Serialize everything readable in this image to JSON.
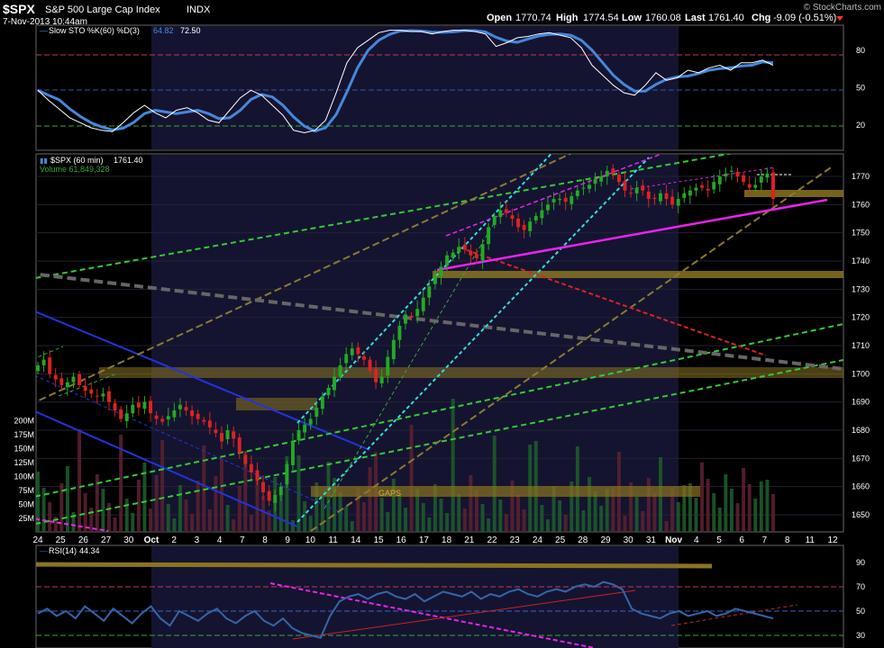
{
  "header": {
    "symbol": "$SPX",
    "name": "S&P 500 Large Cap Index",
    "exchange": "INDX",
    "datetime": "7-Nov-2013 10:44am",
    "open_label": "Open",
    "open": "1770.74",
    "high_label": "High",
    "high": "1774.54",
    "low_label": "Low",
    "low": "1760.08",
    "last_label": "Last",
    "last": "1761.40",
    "chg_label": "Chg",
    "chg": "-9.09 (-0.51%)",
    "watermark": "© StockCharts.com"
  },
  "colors": {
    "background": "#000000",
    "weekend_band": "#151530",
    "candle_up": "#22aa22",
    "candle_down": "#dd2222",
    "stoch_k": "#ffffff",
    "stoch_d": "#4488dd",
    "rsi": "#3366aa",
    "gold": "#8a7420",
    "neg_arrow": "#ff3333"
  },
  "chart_data": [
    {
      "type": "line",
      "panel": "stochastic",
      "legend": "Slow STO %K(60) %D(3)",
      "legend_values": [
        "64.82",
        "72.50"
      ],
      "ylim": [
        0,
        100
      ],
      "yticks": [
        20,
        50,
        80
      ],
      "reference_lines": [
        20,
        50,
        80
      ],
      "series": [
        {
          "values": [
            48,
            40,
            33,
            26,
            22,
            18,
            16,
            15,
            22,
            30,
            36,
            30,
            26,
            32,
            34,
            30,
            24,
            22,
            32,
            42,
            48,
            44,
            36,
            28,
            16,
            14,
            16,
            24,
            46,
            70,
            82,
            88,
            94,
            96,
            96,
            95,
            95,
            93,
            95,
            96,
            96,
            95,
            93,
            83,
            86,
            90,
            91,
            93,
            94,
            92,
            90,
            82,
            68,
            60,
            52,
            46,
            44,
            52,
            62,
            56,
            58,
            64,
            62,
            66,
            68,
            64,
            70,
            70,
            72,
            68
          ]
        }
      ]
    },
    {
      "type": "candlestick",
      "panel": "price",
      "legend": "$SPX (60 min)",
      "legend_value": "1761.40",
      "volume_legend": "Volume 61,849,328",
      "ylim": [
        1645,
        1775
      ],
      "yticks": [
        1650,
        1660,
        1670,
        1680,
        1690,
        1700,
        1710,
        1720,
        1730,
        1740,
        1750,
        1760,
        1770
      ],
      "volume_ticks": [
        "25M",
        "50M",
        "75M",
        "100M",
        "125M",
        "150M",
        "175M",
        "200M"
      ],
      "annotations": [
        "GAPS"
      ],
      "x_tick_labels": [
        "24",
        "25",
        "26",
        "27",
        "30",
        "Oct",
        "2",
        "3",
        "4",
        "7",
        "8",
        "9",
        "10",
        "11",
        "14",
        "15",
        "16",
        "17",
        "18",
        "21",
        "22",
        "23",
        "24",
        "25",
        "28",
        "29",
        "30",
        "31",
        "Nov",
        "4",
        "5",
        "6",
        "7",
        "8",
        "11",
        "12"
      ],
      "closes": [
        1703,
        1705,
        1700,
        1698,
        1696,
        1697,
        1699,
        1696,
        1694,
        1693,
        1692,
        1693,
        1690,
        1687,
        1684,
        1686,
        1689,
        1688,
        1690,
        1686,
        1684,
        1683,
        1685,
        1687,
        1689,
        1687,
        1685,
        1684,
        1683,
        1681,
        1679,
        1676,
        1680,
        1677,
        1672,
        1668,
        1665,
        1662,
        1658,
        1655,
        1657,
        1660,
        1668,
        1676,
        1680,
        1682,
        1684,
        1688,
        1692,
        1695,
        1699,
        1703,
        1707,
        1709,
        1707,
        1705,
        1701,
        1697,
        1699,
        1706,
        1712,
        1717,
        1721,
        1720,
        1723,
        1727,
        1731,
        1735,
        1738,
        1742,
        1743,
        1745,
        1744,
        1742,
        1741,
        1746,
        1752,
        1756,
        1758,
        1757,
        1755,
        1752,
        1751,
        1754,
        1756,
        1758,
        1760,
        1762,
        1762,
        1761,
        1763,
        1765,
        1766,
        1767,
        1769,
        1770,
        1772,
        1771,
        1768,
        1765,
        1764,
        1766,
        1765,
        1762,
        1762,
        1764,
        1762,
        1760,
        1762,
        1764,
        1765,
        1766,
        1766,
        1765,
        1768,
        1770,
        1771,
        1772,
        1770,
        1768,
        1766,
        1767,
        1770,
        1771,
        1762
      ]
    },
    {
      "type": "line",
      "panel": "rsi",
      "legend": "RSI(14)",
      "legend_value": "44.34",
      "ylim": [
        25,
        95
      ],
      "yticks": [
        30,
        50,
        70,
        90
      ],
      "reference_lines": [
        30,
        50,
        70
      ],
      "series": [
        {
          "values": [
            48,
            52,
            46,
            50,
            44,
            54,
            48,
            42,
            52,
            46,
            40,
            48,
            54,
            44,
            38,
            50,
            46,
            42,
            48,
            52,
            44,
            40,
            46,
            50,
            42,
            38,
            44,
            36,
            32,
            30,
            28,
            46,
            58,
            62,
            64,
            60,
            64,
            66,
            62,
            60,
            64,
            58,
            62,
            66,
            64,
            62,
            66,
            60,
            64,
            62,
            66,
            68,
            64,
            62,
            66,
            68,
            66,
            70,
            72,
            70,
            74,
            72,
            68,
            52,
            48,
            46,
            44,
            48,
            50,
            46,
            48,
            50,
            46,
            48,
            52,
            50,
            48,
            46,
            44
          ]
        }
      ]
    }
  ]
}
